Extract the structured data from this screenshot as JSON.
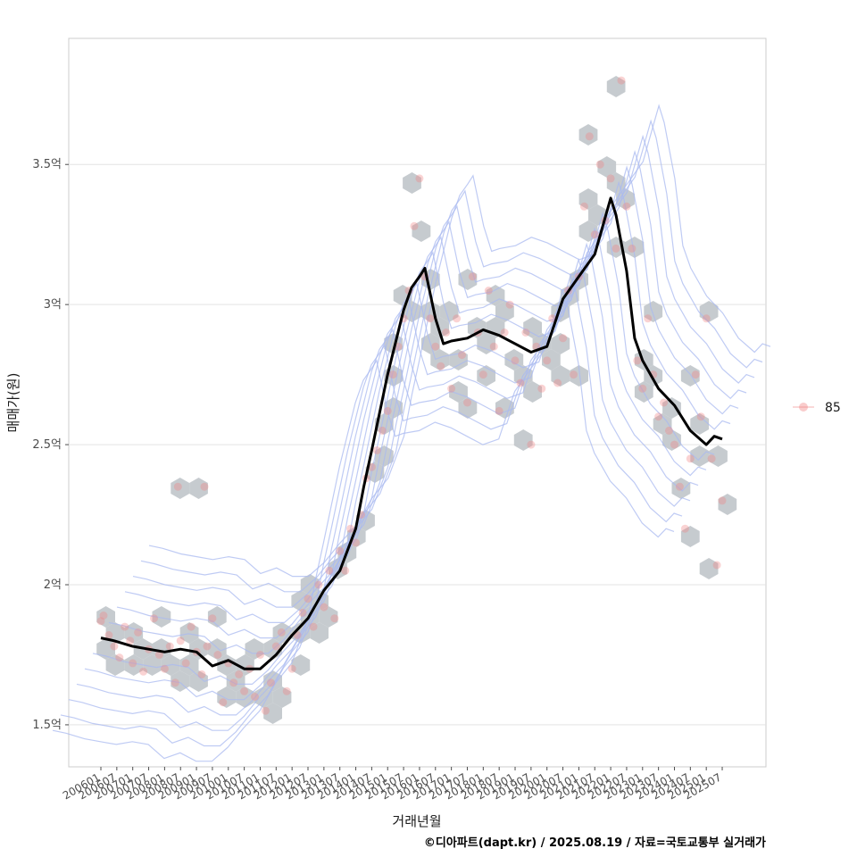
{
  "chart_data": {
    "type": "scatter",
    "title": "",
    "xlabel": "거래년월",
    "ylabel": "매매가(원)",
    "caption": "©디아파트(dapt.kr) / 2025.08.19 / 자료=국토교통부 실거래가",
    "x_start": "2006-01",
    "x_end": "2025-08",
    "x_ticks": [
      "200601",
      "200607",
      "200701",
      "200707",
      "200801",
      "200807",
      "200901",
      "200907",
      "201001",
      "201007",
      "201101",
      "201107",
      "201201",
      "201207",
      "201301",
      "201307",
      "201401",
      "201407",
      "201501",
      "201507",
      "201601",
      "201607",
      "201701",
      "201707",
      "201801",
      "201807",
      "201901",
      "201907",
      "202001",
      "202007",
      "202101",
      "202107",
      "202201",
      "202207",
      "202301",
      "202307",
      "202401",
      "202407",
      "202501",
      "202507"
    ],
    "y_ticks": [
      {
        "value": 1.5,
        "label": "1.5억"
      },
      {
        "value": 2.0,
        "label": "2억"
      },
      {
        "value": 2.5,
        "label": "2.5억"
      },
      {
        "value": 3.0,
        "label": "3억"
      },
      {
        "value": 3.5,
        "label": "3.5억"
      }
    ],
    "ylim": [
      1.35,
      3.95
    ],
    "grid": "horizontal",
    "legend_position": "right",
    "series": [
      {
        "name": "85",
        "kind": "points",
        "color": "#f08080",
        "points": [
          [
            "2006-01",
            1.87
          ],
          [
            "2006-02",
            1.89
          ],
          [
            "2006-04",
            1.82
          ],
          [
            "2006-06",
            1.78
          ],
          [
            "2006-08",
            1.74
          ],
          [
            "2006-10",
            1.85
          ],
          [
            "2006-12",
            1.8
          ],
          [
            "2007-01",
            1.72
          ],
          [
            "2007-03",
            1.83
          ],
          [
            "2007-05",
            1.69
          ],
          [
            "2007-07",
            1.77
          ],
          [
            "2007-09",
            1.88
          ],
          [
            "2007-11",
            1.75
          ],
          [
            "2008-01",
            1.7
          ],
          [
            "2008-03",
            1.78
          ],
          [
            "2008-05",
            1.65
          ],
          [
            "2008-07",
            1.8
          ],
          [
            "2008-09",
            1.72
          ],
          [
            "2008-11",
            1.85
          ],
          [
            "2009-01",
            1.76
          ],
          [
            "2009-03",
            1.68
          ],
          [
            "2009-05",
            1.78
          ],
          [
            "2009-07",
            1.88
          ],
          [
            "2009-09",
            1.75
          ],
          [
            "2009-11",
            1.58
          ],
          [
            "2008-06",
            2.35
          ],
          [
            "2009-04",
            2.35
          ],
          [
            "2010-01",
            1.72
          ],
          [
            "2010-03",
            1.65
          ],
          [
            "2010-05",
            1.68
          ],
          [
            "2010-07",
            1.62
          ],
          [
            "2010-09",
            1.7
          ],
          [
            "2010-11",
            1.6
          ],
          [
            "2011-01",
            1.75
          ],
          [
            "2011-03",
            1.55
          ],
          [
            "2011-05",
            1.65
          ],
          [
            "2011-07",
            1.78
          ],
          [
            "2011-09",
            1.83
          ],
          [
            "2011-11",
            1.62
          ],
          [
            "2012-01",
            1.7
          ],
          [
            "2012-03",
            1.82
          ],
          [
            "2012-05",
            1.9
          ],
          [
            "2012-07",
            1.95
          ],
          [
            "2012-09",
            1.85
          ],
          [
            "2012-11",
            2.0
          ],
          [
            "2013-01",
            1.92
          ],
          [
            "2013-03",
            2.05
          ],
          [
            "2013-05",
            1.88
          ],
          [
            "2013-07",
            2.12
          ],
          [
            "2013-09",
            2.05
          ],
          [
            "2013-11",
            2.2
          ],
          [
            "2014-01",
            2.15
          ],
          [
            "2014-03",
            2.25
          ],
          [
            "2014-05",
            2.38
          ],
          [
            "2014-07",
            2.42
          ],
          [
            "2014-09",
            2.48
          ],
          [
            "2014-11",
            2.55
          ],
          [
            "2015-01",
            2.62
          ],
          [
            "2015-03",
            2.75
          ],
          [
            "2015-05",
            2.85
          ],
          [
            "2015-07",
            2.95
          ],
          [
            "2015-09",
            3.05
          ],
          [
            "2015-11",
            3.28
          ],
          [
            "2016-01",
            3.45
          ],
          [
            "2016-03",
            3.1
          ],
          [
            "2016-05",
            2.95
          ],
          [
            "2016-07",
            2.85
          ],
          [
            "2016-09",
            2.78
          ],
          [
            "2016-11",
            2.9
          ],
          [
            "2017-01",
            2.7
          ],
          [
            "2017-03",
            2.95
          ],
          [
            "2017-05",
            2.82
          ],
          [
            "2017-07",
            2.65
          ],
          [
            "2017-09",
            3.1
          ],
          [
            "2017-11",
            2.9
          ],
          [
            "2018-01",
            2.75
          ],
          [
            "2018-03",
            3.05
          ],
          [
            "2018-05",
            2.85
          ],
          [
            "2018-07",
            2.62
          ],
          [
            "2018-09",
            2.9
          ],
          [
            "2018-11",
            3.0
          ],
          [
            "2019-01",
            2.8
          ],
          [
            "2019-03",
            2.72
          ],
          [
            "2019-05",
            2.9
          ],
          [
            "2019-07",
            2.5
          ],
          [
            "2019-09",
            2.85
          ],
          [
            "2019-11",
            2.7
          ],
          [
            "2020-01",
            2.8
          ],
          [
            "2020-03",
            2.95
          ],
          [
            "2020-05",
            2.72
          ],
          [
            "2020-07",
            2.88
          ],
          [
            "2020-09",
            3.05
          ],
          [
            "2020-11",
            2.75
          ],
          [
            "2021-01",
            3.1
          ],
          [
            "2021-03",
            3.35
          ],
          [
            "2021-05",
            3.6
          ],
          [
            "2021-07",
            3.25
          ],
          [
            "2021-09",
            3.5
          ],
          [
            "2021-11",
            3.3
          ],
          [
            "2022-01",
            3.45
          ],
          [
            "2022-03",
            3.2
          ],
          [
            "2022-05",
            3.8
          ],
          [
            "2022-07",
            3.35
          ],
          [
            "2022-09",
            3.2
          ],
          [
            "2022-11",
            2.8
          ],
          [
            "2023-01",
            2.7
          ],
          [
            "2023-03",
            2.95
          ],
          [
            "2023-05",
            2.75
          ],
          [
            "2023-07",
            2.6
          ],
          [
            "2023-09",
            2.65
          ],
          [
            "2023-11",
            2.55
          ],
          [
            "2024-01",
            2.5
          ],
          [
            "2024-03",
            2.35
          ],
          [
            "2024-05",
            2.2
          ],
          [
            "2024-07",
            2.45
          ],
          [
            "2024-09",
            2.75
          ],
          [
            "2024-11",
            2.6
          ],
          [
            "2025-01",
            2.95
          ],
          [
            "2025-03",
            2.45
          ],
          [
            "2025-05",
            2.07
          ],
          [
            "2025-07",
            2.3
          ]
        ]
      },
      {
        "name": "moving-average",
        "kind": "line",
        "color": "#000000",
        "points": [
          [
            "2006-01",
            1.81
          ],
          [
            "2006-06",
            1.8
          ],
          [
            "2007-01",
            1.78
          ],
          [
            "2007-07",
            1.77
          ],
          [
            "2008-01",
            1.76
          ],
          [
            "2008-07",
            1.77
          ],
          [
            "2009-01",
            1.76
          ],
          [
            "2009-07",
            1.71
          ],
          [
            "2010-01",
            1.73
          ],
          [
            "2010-07",
            1.7
          ],
          [
            "2011-01",
            1.7
          ],
          [
            "2011-07",
            1.75
          ],
          [
            "2012-01",
            1.82
          ],
          [
            "2012-07",
            1.88
          ],
          [
            "2013-01",
            1.98
          ],
          [
            "2013-07",
            2.05
          ],
          [
            "2014-01",
            2.2
          ],
          [
            "2014-04",
            2.35
          ],
          [
            "2014-07",
            2.48
          ],
          [
            "2015-01",
            2.75
          ],
          [
            "2015-07",
            2.98
          ],
          [
            "2015-10",
            3.06
          ],
          [
            "2016-01",
            3.1
          ],
          [
            "2016-03",
            3.13
          ],
          [
            "2016-07",
            2.95
          ],
          [
            "2016-10",
            2.86
          ],
          [
            "2017-01",
            2.87
          ],
          [
            "2017-07",
            2.88
          ],
          [
            "2018-01",
            2.91
          ],
          [
            "2018-07",
            2.89
          ],
          [
            "2019-01",
            2.86
          ],
          [
            "2019-07",
            2.83
          ],
          [
            "2020-01",
            2.85
          ],
          [
            "2020-07",
            3.02
          ],
          [
            "2021-01",
            3.1
          ],
          [
            "2021-07",
            3.18
          ],
          [
            "2022-01",
            3.38
          ],
          [
            "2022-03",
            3.32
          ],
          [
            "2022-07",
            3.12
          ],
          [
            "2022-10",
            2.88
          ],
          [
            "2023-01",
            2.8
          ],
          [
            "2023-07",
            2.7
          ],
          [
            "2024-01",
            2.64
          ],
          [
            "2024-07",
            2.55
          ],
          [
            "2025-01",
            2.5
          ],
          [
            "2025-04",
            2.53
          ],
          [
            "2025-07",
            2.52
          ]
        ]
      }
    ],
    "hex_color": "#c3c8cc",
    "contour_color": "#a9b9f0"
  }
}
